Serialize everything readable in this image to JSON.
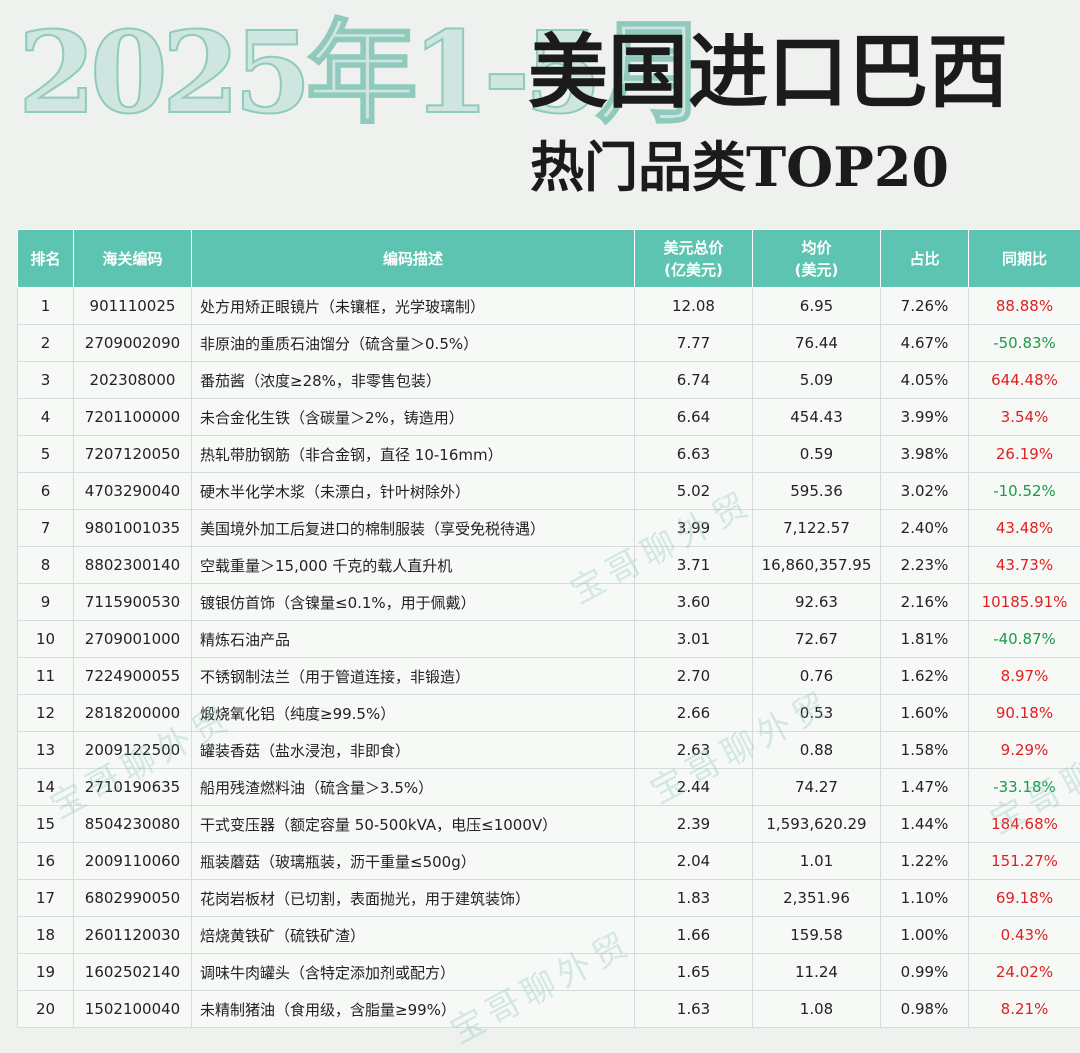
{
  "header": {
    "date_range": "2025年1-5月",
    "title_line1": "美国进口巴西",
    "title_line2": "热门品类TOP20"
  },
  "watermark": "宝哥聊外贸",
  "colors": {
    "header_bg": "#5cc4b0",
    "positive": "#e02020",
    "negative": "#1a9a4a"
  },
  "table": {
    "headers": {
      "rank": "排名",
      "hs_code": "海关编码",
      "description": "编码描述",
      "total_line1": "美元总价",
      "total_line2": "(亿美元)",
      "avg_line1": "均价",
      "avg_line2": "(美元)",
      "share": "占比",
      "yoy": "同期比"
    }
  },
  "chart_data": {
    "type": "table",
    "title": "2025年1-5月 美国进口巴西 热门品类TOP20",
    "columns": [
      "排名",
      "海关编码",
      "编码描述",
      "美元总价(亿美元)",
      "均价(美元)",
      "占比",
      "同期比"
    ],
    "rows": [
      {
        "rank": "1",
        "code": "901110025",
        "desc": "处方用矫正眼镜片（未镶框，光学玻璃制）",
        "total": "12.08",
        "avg": "6.95",
        "share": "7.26%",
        "yoy": "88.88%"
      },
      {
        "rank": "2",
        "code": "2709002090",
        "desc": "非原油的重质石油馏分（硫含量＞0.5%）",
        "total": "7.77",
        "avg": "76.44",
        "share": "4.67%",
        "yoy": "-50.83%"
      },
      {
        "rank": "3",
        "code": "202308000",
        "desc": "番茄酱（浓度≥28%，非零售包装）",
        "total": "6.74",
        "avg": "5.09",
        "share": "4.05%",
        "yoy": "644.48%"
      },
      {
        "rank": "4",
        "code": "7201100000",
        "desc": "未合金化生铁（含碳量＞2%，铸造用）",
        "total": "6.64",
        "avg": "454.43",
        "share": "3.99%",
        "yoy": "3.54%"
      },
      {
        "rank": "5",
        "code": "7207120050",
        "desc": "热轧带肋钢筋（非合金钢，直径 10-16mm）",
        "total": "6.63",
        "avg": "0.59",
        "share": "3.98%",
        "yoy": "26.19%"
      },
      {
        "rank": "6",
        "code": "4703290040",
        "desc": "硬木半化学木浆（未漂白，针叶树除外）",
        "total": "5.02",
        "avg": "595.36",
        "share": "3.02%",
        "yoy": "-10.52%"
      },
      {
        "rank": "7",
        "code": "9801001035",
        "desc": "美国境外加工后复进口的棉制服装（享受免税待遇）",
        "total": "3.99",
        "avg": "7,122.57",
        "share": "2.40%",
        "yoy": "43.48%"
      },
      {
        "rank": "8",
        "code": "8802300140",
        "desc": "空载重量＞15,000 千克的载人直升机",
        "total": "3.71",
        "avg": "16,860,357.95",
        "share": "2.23%",
        "yoy": "43.73%"
      },
      {
        "rank": "9",
        "code": "7115900530",
        "desc": "镀银仿首饰（含镍量≤0.1%，用于佩戴）",
        "total": "3.60",
        "avg": "92.63",
        "share": "2.16%",
        "yoy": "10185.91%"
      },
      {
        "rank": "10",
        "code": "2709001000",
        "desc": "精炼石油产品",
        "total": "3.01",
        "avg": "72.67",
        "share": "1.81%",
        "yoy": "-40.87%"
      },
      {
        "rank": "11",
        "code": "7224900055",
        "desc": "不锈钢制法兰（用于管道连接，非锻造）",
        "total": "2.70",
        "avg": "0.76",
        "share": "1.62%",
        "yoy": "8.97%"
      },
      {
        "rank": "12",
        "code": "2818200000",
        "desc": "煅烧氧化铝（纯度≥99.5%）",
        "total": "2.66",
        "avg": "0.53",
        "share": "1.60%",
        "yoy": "90.18%"
      },
      {
        "rank": "13",
        "code": "2009122500",
        "desc": "罐装香菇（盐水浸泡，非即食）",
        "total": "2.63",
        "avg": "0.88",
        "share": "1.58%",
        "yoy": "9.29%"
      },
      {
        "rank": "14",
        "code": "2710190635",
        "desc": "船用残渣燃料油（硫含量＞3.5%）",
        "total": "2.44",
        "avg": "74.27",
        "share": "1.47%",
        "yoy": "-33.18%"
      },
      {
        "rank": "15",
        "code": "8504230080",
        "desc": "干式变压器（额定容量 50-500kVA，电压≤1000V）",
        "total": "2.39",
        "avg": "1,593,620.29",
        "share": "1.44%",
        "yoy": "184.68%"
      },
      {
        "rank": "16",
        "code": "2009110060",
        "desc": "瓶装蘑菇（玻璃瓶装，沥干重量≤500g）",
        "total": "2.04",
        "avg": "1.01",
        "share": "1.22%",
        "yoy": "151.27%"
      },
      {
        "rank": "17",
        "code": "6802990050",
        "desc": "花岗岩板材（已切割，表面抛光，用于建筑装饰）",
        "total": "1.83",
        "avg": "2,351.96",
        "share": "1.10%",
        "yoy": "69.18%"
      },
      {
        "rank": "18",
        "code": "2601120030",
        "desc": "焙烧黄铁矿（硫铁矿渣）",
        "total": "1.66",
        "avg": "159.58",
        "share": "1.00%",
        "yoy": "0.43%"
      },
      {
        "rank": "19",
        "code": "1602502140",
        "desc": "调味牛肉罐头（含特定添加剂或配方）",
        "total": "1.65",
        "avg": "11.24",
        "share": "0.99%",
        "yoy": "24.02%"
      },
      {
        "rank": "20",
        "code": "1502100040",
        "desc": "未精制猪油（食用级，含脂量≥99%）",
        "total": "1.63",
        "avg": "1.08",
        "share": "0.98%",
        "yoy": "8.21%"
      }
    ]
  }
}
